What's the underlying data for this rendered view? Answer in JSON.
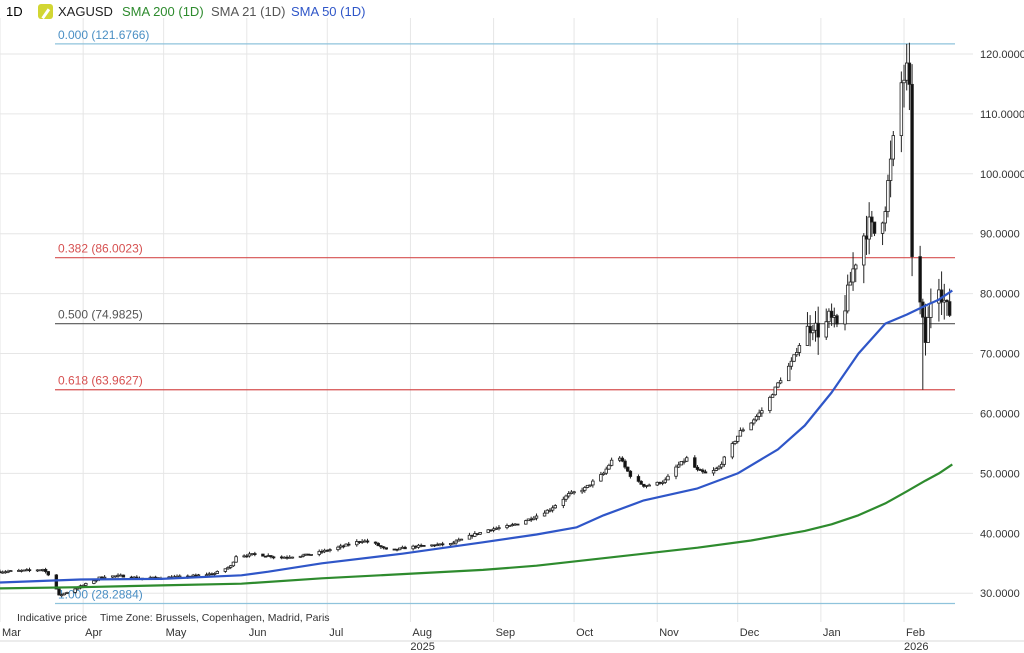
{
  "header": {
    "timeframe": "1D",
    "symbol": "XAGUSD",
    "indicators": [
      {
        "label": "SMA 200 (1D)",
        "color": "#2e8b2e"
      },
      {
        "label": "SMA 21 (1D)",
        "color": "#555555"
      },
      {
        "label": "SMA 50 (1D)",
        "color": "#2f56c8"
      }
    ]
  },
  "footer": {
    "price_note": "Indicative price",
    "timezone": "Time Zone: Brussels, Copenhagen, Madrid, Paris"
  },
  "chart_data": {
    "type": "candlestick",
    "title": "XAGUSD",
    "y_range": [
      25.2,
      126.0
    ],
    "y_ticks": [
      "120.0000",
      "110.0000",
      "100.0000",
      "90.0000",
      "80.0000",
      "70.0000",
      "60.0000",
      "50.0000",
      "40.0000",
      "30.0000"
    ],
    "y_tick_values": [
      120,
      110,
      100,
      90,
      80,
      70,
      60,
      50,
      40,
      30
    ],
    "x_labels": [
      "Mar",
      "Apr",
      "May",
      "Jun",
      "Jul",
      "Aug",
      "Sep",
      "Oct",
      "Nov",
      "Dec",
      "Jan",
      "Feb"
    ],
    "x_label_days": [
      0,
      31,
      61,
      92,
      122,
      153,
      184,
      214,
      245,
      275,
      306,
      337
    ],
    "year_labels": [
      "2025",
      "2026"
    ],
    "year_label_days": [
      153,
      337
    ],
    "x_day_range": [
      0,
      356
    ],
    "fib_levels": [
      {
        "label": "0.000 (121.6766)",
        "value": 121.6766,
        "color": "#8fc3dc"
      },
      {
        "label": "0.382 (86.0023)",
        "value": 86.0023,
        "color": "#d65050"
      },
      {
        "label": "0.500 (74.9825)",
        "value": 74.9825,
        "color": "#555555"
      },
      {
        "label": "0.618 (63.9627)",
        "value": 63.9627,
        "color": "#d65050"
      },
      {
        "label": "1.000 (28.2884)",
        "value": 28.2884,
        "color": "#8fc3dc"
      }
    ],
    "price_points": [
      [
        0,
        33.6
      ],
      [
        10,
        33.8
      ],
      [
        16,
        34.0
      ],
      [
        18,
        33.2
      ],
      [
        20,
        31.8
      ],
      [
        22,
        29.6
      ],
      [
        25,
        30.2
      ],
      [
        32,
        31.5
      ],
      [
        38,
        32.8
      ],
      [
        45,
        32.9
      ],
      [
        52,
        32.5
      ],
      [
        61,
        32.6
      ],
      [
        70,
        32.8
      ],
      [
        80,
        33.3
      ],
      [
        86,
        34.5
      ],
      [
        88,
        36.2
      ],
      [
        95,
        36.5
      ],
      [
        105,
        36.0
      ],
      [
        115,
        36.4
      ],
      [
        125,
        37.5
      ],
      [
        135,
        38.8
      ],
      [
        140,
        38.2
      ],
      [
        145,
        37.0
      ],
      [
        150,
        37.5
      ],
      [
        155,
        37.8
      ],
      [
        160,
        38.0
      ],
      [
        168,
        38.2
      ],
      [
        175,
        39.5
      ],
      [
        182,
        40.6
      ],
      [
        190,
        41.2
      ],
      [
        198,
        42.5
      ],
      [
        205,
        44.0
      ],
      [
        212,
        46.5
      ],
      [
        218,
        47.5
      ],
      [
        225,
        50.0
      ],
      [
        230,
        53.5
      ],
      [
        233,
        51.0
      ],
      [
        236,
        49.0
      ],
      [
        240,
        48.0
      ],
      [
        244,
        48.2
      ],
      [
        248,
        48.8
      ],
      [
        252,
        51.0
      ],
      [
        256,
        52.5
      ],
      [
        260,
        50.5
      ],
      [
        264,
        49.8
      ],
      [
        268,
        51.0
      ],
      [
        272,
        54.0
      ],
      [
        276,
        57.0
      ],
      [
        280,
        58.5
      ],
      [
        285,
        61.0
      ],
      [
        290,
        65.0
      ],
      [
        295,
        68.5
      ],
      [
        300,
        73.5
      ],
      [
        303,
        75.0
      ],
      [
        306,
        73.0
      ],
      [
        309,
        76.0
      ],
      [
        312,
        74.5
      ],
      [
        315,
        78.0
      ],
      [
        318,
        84.0
      ],
      [
        321,
        89.0
      ],
      [
        324,
        91.5
      ],
      [
        327,
        89.5
      ],
      [
        330,
        95.0
      ],
      [
        333,
        105.0
      ],
      [
        336,
        115.0
      ],
      [
        338,
        117.0
      ],
      [
        339,
        113.0
      ],
      [
        340,
        87.0
      ],
      [
        343,
        78.0
      ],
      [
        345,
        72.0
      ],
      [
        347,
        79.0
      ],
      [
        349,
        84.0
      ],
      [
        351,
        80.0
      ],
      [
        353,
        77.5
      ],
      [
        355,
        76.0
      ]
    ],
    "spikes": [
      {
        "day": 338,
        "high": 121.6766
      },
      {
        "day": 344,
        "low": 63.9627
      }
    ],
    "series": [
      {
        "name": "SMA 50 (1D)",
        "color": "#2f56c8",
        "points": [
          [
            0,
            31.8
          ],
          [
            30,
            32.3
          ],
          [
            60,
            32.4
          ],
          [
            90,
            33.0
          ],
          [
            100,
            33.6
          ],
          [
            120,
            35.0
          ],
          [
            150,
            36.6
          ],
          [
            180,
            38.5
          ],
          [
            200,
            39.8
          ],
          [
            215,
            41.0
          ],
          [
            225,
            43.0
          ],
          [
            240,
            45.5
          ],
          [
            260,
            47.5
          ],
          [
            275,
            50.0
          ],
          [
            290,
            54.0
          ],
          [
            300,
            58.0
          ],
          [
            310,
            63.5
          ],
          [
            320,
            70.0
          ],
          [
            330,
            75.0
          ],
          [
            338,
            76.5
          ],
          [
            345,
            78.0
          ],
          [
            350,
            79.0
          ],
          [
            355,
            80.5
          ]
        ]
      },
      {
        "name": "SMA 200 (1D)",
        "color": "#2e8b2e",
        "points": [
          [
            0,
            30.8
          ],
          [
            30,
            31.0
          ],
          [
            60,
            31.3
          ],
          [
            90,
            31.6
          ],
          [
            120,
            32.5
          ],
          [
            150,
            33.2
          ],
          [
            180,
            33.9
          ],
          [
            200,
            34.6
          ],
          [
            220,
            35.6
          ],
          [
            240,
            36.6
          ],
          [
            260,
            37.6
          ],
          [
            280,
            38.8
          ],
          [
            300,
            40.4
          ],
          [
            310,
            41.5
          ],
          [
            320,
            43.0
          ],
          [
            330,
            45.0
          ],
          [
            338,
            47.0
          ],
          [
            345,
            48.8
          ],
          [
            350,
            50.0
          ],
          [
            355,
            51.5
          ]
        ]
      }
    ]
  }
}
